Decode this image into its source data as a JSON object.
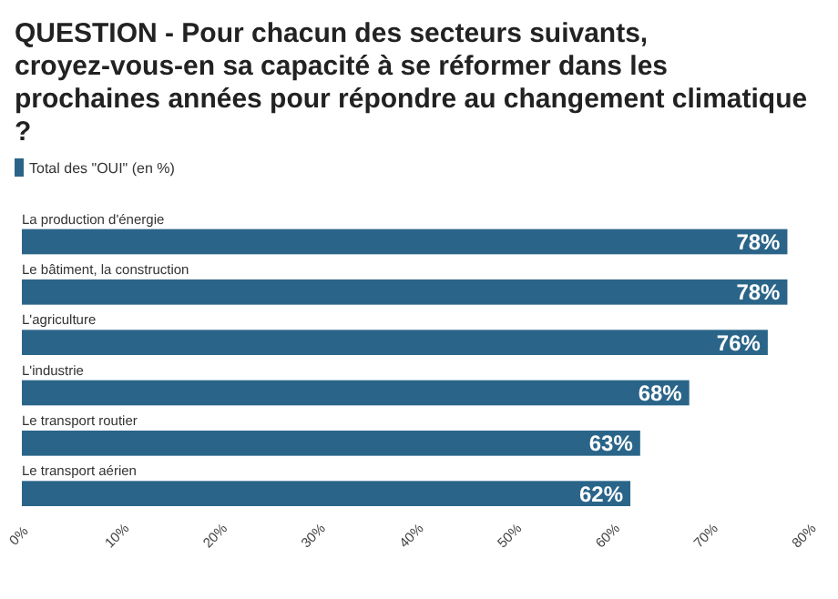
{
  "chart_data": {
    "type": "bar",
    "orientation": "horizontal",
    "title": "QUESTION - Pour chacun des secteurs suivants, croyez-vous-en sa capacité à se réformer dans les prochaines années pour répondre au changement climatique ?",
    "categories": [
      "La production d'énergie",
      "Le bâtiment, la construction",
      "L'agriculture",
      "L'industrie",
      "Le transport routier",
      "Le transport aérien"
    ],
    "series": [
      {
        "name": "Total des \"OUI\" (en %)",
        "color": "#2a6589",
        "values": [
          78,
          78,
          76,
          68,
          63,
          62
        ]
      }
    ],
    "value_labels": [
      "78%",
      "78%",
      "76%",
      "68%",
      "63%",
      "62%"
    ],
    "xlim": [
      0,
      80
    ],
    "xticks": [
      {
        "value": 0,
        "label": "0%"
      },
      {
        "value": 10,
        "label": "10%"
      },
      {
        "value": 20,
        "label": "20%"
      },
      {
        "value": 30,
        "label": "30%"
      },
      {
        "value": 40,
        "label": "40%"
      },
      {
        "value": 50,
        "label": "50%"
      },
      {
        "value": 60,
        "label": "60%"
      },
      {
        "value": 70,
        "label": "70%"
      },
      {
        "value": 80,
        "label": "80%"
      }
    ],
    "legend": "top left",
    "grid": false
  }
}
